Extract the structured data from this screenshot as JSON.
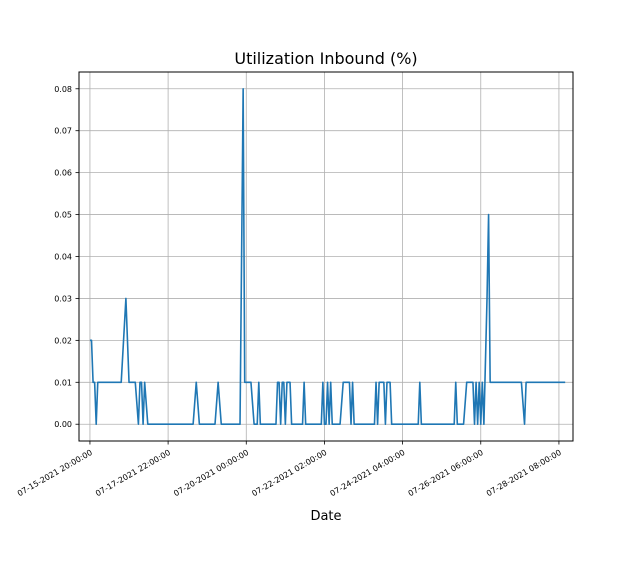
{
  "chart_data": {
    "type": "line",
    "title": "Utilization Inbound (%)",
    "xlabel": "Date",
    "ylabel": "",
    "ylim": [
      -0.004,
      0.084
    ],
    "xlim": [
      "2021-07-15T13:00:00",
      "2021-07-28T17:00:00"
    ],
    "grid": true,
    "line_color": "#1f77b4",
    "y_ticks": [
      {
        "value": 0.0,
        "label": "0.00"
      },
      {
        "value": 0.01,
        "label": "0.01"
      },
      {
        "value": 0.02,
        "label": "0.02"
      },
      {
        "value": 0.03,
        "label": "0.03"
      },
      {
        "value": 0.04,
        "label": "0.04"
      },
      {
        "value": 0.05,
        "label": "0.05"
      },
      {
        "value": 0.06,
        "label": "0.06"
      },
      {
        "value": 0.07,
        "label": "0.07"
      },
      {
        "value": 0.08,
        "label": "0.08"
      }
    ],
    "x_ticks": [
      {
        "value": "2021-07-15T20:00:00",
        "label": "07-15-2021 20:00:00"
      },
      {
        "value": "2021-07-17T22:00:00",
        "label": "07-17-2021 22:00:00"
      },
      {
        "value": "2021-07-20T00:00:00",
        "label": "07-20-2021 00:00:00"
      },
      {
        "value": "2021-07-22T02:00:00",
        "label": "07-22-2021 02:00:00"
      },
      {
        "value": "2021-07-24T04:00:00",
        "label": "07-24-2021 04:00:00"
      },
      {
        "value": "2021-07-26T06:00:00",
        "label": "07-26-2021 06:00:00"
      },
      {
        "value": "2021-07-28T08:00:00",
        "label": "07-28-2021 08:00:00"
      }
    ],
    "series": [
      {
        "points": [
          [
            "2021-07-15T20:00:00",
            0.02
          ],
          [
            "2021-07-15T21:00:00",
            0.02
          ],
          [
            "2021-07-15T22:00:00",
            0.01
          ],
          [
            "2021-07-15T23:00:00",
            0.01
          ],
          [
            "2021-07-16T00:00:00",
            0.0
          ],
          [
            "2021-07-16T01:00:00",
            0.01
          ],
          [
            "2021-07-16T16:00:00",
            0.01
          ],
          [
            "2021-07-16T19:00:00",
            0.03
          ],
          [
            "2021-07-16T21:00:00",
            0.01
          ],
          [
            "2021-07-17T01:00:00",
            0.01
          ],
          [
            "2021-07-17T03:00:00",
            0.0
          ],
          [
            "2021-07-17T04:00:00",
            0.01
          ],
          [
            "2021-07-17T05:00:00",
            0.01
          ],
          [
            "2021-07-17T06:00:00",
            0.0
          ],
          [
            "2021-07-17T07:00:00",
            0.01
          ],
          [
            "2021-07-17T09:00:00",
            0.0
          ],
          [
            "2021-07-18T14:00:00",
            0.0
          ],
          [
            "2021-07-18T16:00:00",
            0.01
          ],
          [
            "2021-07-18T18:00:00",
            0.0
          ],
          [
            "2021-07-19T04:00:00",
            0.0
          ],
          [
            "2021-07-19T06:00:00",
            0.01
          ],
          [
            "2021-07-19T08:00:00",
            0.0
          ],
          [
            "2021-07-19T20:00:00",
            0.0
          ],
          [
            "2021-07-19T22:00:00",
            0.08
          ],
          [
            "2021-07-19T23:00:00",
            0.01
          ],
          [
            "2021-07-20T03:00:00",
            0.01
          ],
          [
            "2021-07-20T05:00:00",
            0.0
          ],
          [
            "2021-07-20T07:00:00",
            0.0
          ],
          [
            "2021-07-20T08:00:00",
            0.01
          ],
          [
            "2021-07-20T09:00:00",
            0.0
          ],
          [
            "2021-07-20T19:00:00",
            0.0
          ],
          [
            "2021-07-20T20:00:00",
            0.01
          ],
          [
            "2021-07-20T21:00:00",
            0.01
          ],
          [
            "2021-07-20T22:00:00",
            0.0
          ],
          [
            "2021-07-20T23:00:00",
            0.01
          ],
          [
            "2021-07-21T00:00:00",
            0.01
          ],
          [
            "2021-07-21T01:00:00",
            0.0
          ],
          [
            "2021-07-21T02:00:00",
            0.01
          ],
          [
            "2021-07-21T04:00:00",
            0.01
          ],
          [
            "2021-07-21T05:00:00",
            0.0
          ],
          [
            "2021-07-21T12:00:00",
            0.0
          ],
          [
            "2021-07-21T13:00:00",
            0.01
          ],
          [
            "2021-07-21T14:00:00",
            0.0
          ],
          [
            "2021-07-22T00:00:00",
            0.0
          ],
          [
            "2021-07-22T01:00:00",
            0.01
          ],
          [
            "2021-07-22T02:00:00",
            0.0
          ],
          [
            "2021-07-22T03:00:00",
            0.0
          ],
          [
            "2021-07-22T04:00:00",
            0.01
          ],
          [
            "2021-07-22T05:00:00",
            0.0
          ],
          [
            "2021-07-22T06:00:00",
            0.01
          ],
          [
            "2021-07-22T07:00:00",
            0.0
          ],
          [
            "2021-07-22T12:00:00",
            0.0
          ],
          [
            "2021-07-22T14:00:00",
            0.01
          ],
          [
            "2021-07-22T18:00:00",
            0.01
          ],
          [
            "2021-07-22T19:00:00",
            0.0
          ],
          [
            "2021-07-22T20:00:00",
            0.01
          ],
          [
            "2021-07-22T21:00:00",
            0.0
          ],
          [
            "2021-07-23T10:00:00",
            0.0
          ],
          [
            "2021-07-23T11:00:00",
            0.01
          ],
          [
            "2021-07-23T12:00:00",
            0.0
          ],
          [
            "2021-07-23T13:00:00",
            0.01
          ],
          [
            "2021-07-23T16:00:00",
            0.01
          ],
          [
            "2021-07-23T17:00:00",
            0.0
          ],
          [
            "2021-07-23T18:00:00",
            0.01
          ],
          [
            "2021-07-23T20:00:00",
            0.01
          ],
          [
            "2021-07-23T21:00:00",
            0.0
          ],
          [
            "2021-07-24T14:00:00",
            0.0
          ],
          [
            "2021-07-24T15:00:00",
            0.01
          ],
          [
            "2021-07-24T16:00:00",
            0.0
          ],
          [
            "2021-07-25T13:00:00",
            0.0
          ],
          [
            "2021-07-25T14:00:00",
            0.01
          ],
          [
            "2021-07-25T15:00:00",
            0.0
          ],
          [
            "2021-07-25T19:00:00",
            0.0
          ],
          [
            "2021-07-25T21:00:00",
            0.01
          ],
          [
            "2021-07-26T01:00:00",
            0.01
          ],
          [
            "2021-07-26T02:00:00",
            0.0
          ],
          [
            "2021-07-26T03:00:00",
            0.01
          ],
          [
            "2021-07-26T04:00:00",
            0.0
          ],
          [
            "2021-07-26T05:00:00",
            0.01
          ],
          [
            "2021-07-26T06:00:00",
            0.0
          ],
          [
            "2021-07-26T07:00:00",
            0.01
          ],
          [
            "2021-07-26T08:00:00",
            0.0
          ],
          [
            "2021-07-26T10:00:00",
            0.03
          ],
          [
            "2021-07-26T11:00:00",
            0.05
          ],
          [
            "2021-07-26T12:00:00",
            0.01
          ],
          [
            "2021-07-27T08:00:00",
            0.01
          ],
          [
            "2021-07-27T10:00:00",
            0.0
          ],
          [
            "2021-07-27T11:00:00",
            0.01
          ],
          [
            "2021-07-28T12:00:00",
            0.01
          ]
        ]
      }
    ]
  }
}
